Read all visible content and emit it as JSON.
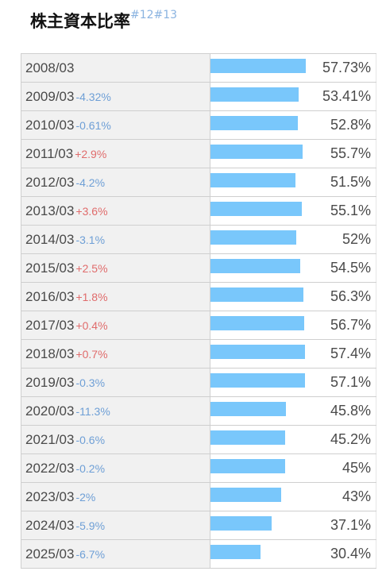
{
  "header": {
    "title": "株主資本比率",
    "ref1": "#12",
    "ref2": "#13"
  },
  "colors": {
    "bar": "#79c7fb",
    "negative": "#6e9fd6",
    "positive": "#e06c6c"
  },
  "rows": [
    {
      "year": "2008/03",
      "change": "",
      "value": "57.73%",
      "ratio": 57.73
    },
    {
      "year": "2009/03",
      "change": "-4.32%",
      "value": "53.41%",
      "ratio": 53.41
    },
    {
      "year": "2010/03",
      "change": "-0.61%",
      "value": "52.8%",
      "ratio": 52.8
    },
    {
      "year": "2011/03",
      "change": "+2.9%",
      "value": "55.7%",
      "ratio": 55.7
    },
    {
      "year": "2012/03",
      "change": "-4.2%",
      "value": "51.5%",
      "ratio": 51.5
    },
    {
      "year": "2013/03",
      "change": "+3.6%",
      "value": "55.1%",
      "ratio": 55.1
    },
    {
      "year": "2014/03",
      "change": "-3.1%",
      "value": "52%",
      "ratio": 52
    },
    {
      "year": "2015/03",
      "change": "+2.5%",
      "value": "54.5%",
      "ratio": 54.5
    },
    {
      "year": "2016/03",
      "change": "+1.8%",
      "value": "56.3%",
      "ratio": 56.3
    },
    {
      "year": "2017/03",
      "change": "+0.4%",
      "value": "56.7%",
      "ratio": 56.7
    },
    {
      "year": "2018/03",
      "change": "+0.7%",
      "value": "57.4%",
      "ratio": 57.4
    },
    {
      "year": "2019/03",
      "change": "-0.3%",
      "value": "57.1%",
      "ratio": 57.1
    },
    {
      "year": "2020/03",
      "change": "-11.3%",
      "value": "45.8%",
      "ratio": 45.8
    },
    {
      "year": "2021/03",
      "change": "-0.6%",
      "value": "45.2%",
      "ratio": 45.2
    },
    {
      "year": "2022/03",
      "change": "-0.2%",
      "value": "45%",
      "ratio": 45
    },
    {
      "year": "2023/03",
      "change": "-2%",
      "value": "43%",
      "ratio": 43
    },
    {
      "year": "2024/03",
      "change": "-5.9%",
      "value": "37.1%",
      "ratio": 37.1
    },
    {
      "year": "2025/03",
      "change": "-6.7%",
      "value": "30.4%",
      "ratio": 30.4
    }
  ]
}
